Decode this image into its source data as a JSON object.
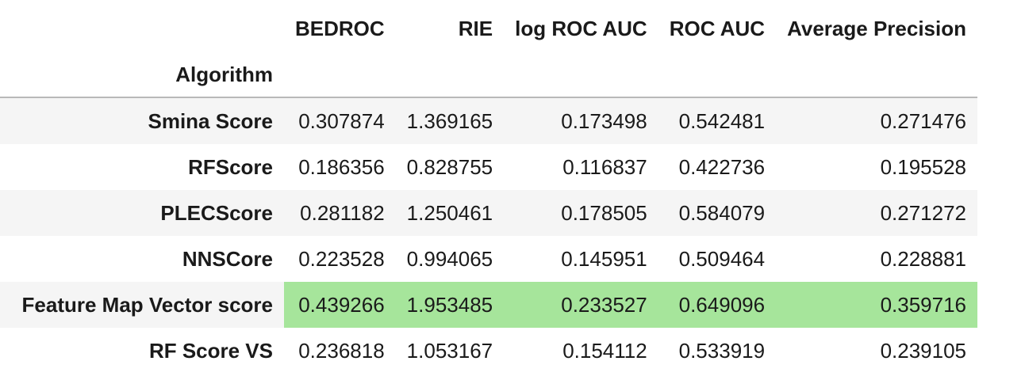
{
  "table": {
    "index_name": "Algorithm",
    "columns": [
      "BEDROC",
      "RIE",
      "log ROC AUC",
      "ROC AUC",
      "Average Precision"
    ],
    "rows": [
      {
        "label": "Smina Score",
        "values": [
          "0.307874",
          "1.369165",
          "0.173498",
          "0.542481",
          "0.271476"
        ],
        "highlight": false
      },
      {
        "label": "RFScore",
        "values": [
          "0.186356",
          "0.828755",
          "0.116837",
          "0.422736",
          "0.195528"
        ],
        "highlight": false
      },
      {
        "label": "PLECScore",
        "values": [
          "0.281182",
          "1.250461",
          "0.178505",
          "0.584079",
          "0.271272"
        ],
        "highlight": false
      },
      {
        "label": "NNSCore",
        "values": [
          "0.223528",
          "0.994065",
          "0.145951",
          "0.509464",
          "0.228881"
        ],
        "highlight": false
      },
      {
        "label": "Feature Map Vector score",
        "values": [
          "0.439266",
          "1.953485",
          "0.233527",
          "0.649096",
          "0.359716"
        ],
        "highlight": true
      },
      {
        "label": "RF Score VS",
        "values": [
          "0.236818",
          "1.053167",
          "0.154112",
          "0.533919",
          "0.239105"
        ],
        "highlight": false
      }
    ],
    "colors": {
      "highlight": "#a6e59b",
      "stripe": "#f5f5f5",
      "header_rule": "#b9b9b9"
    }
  }
}
